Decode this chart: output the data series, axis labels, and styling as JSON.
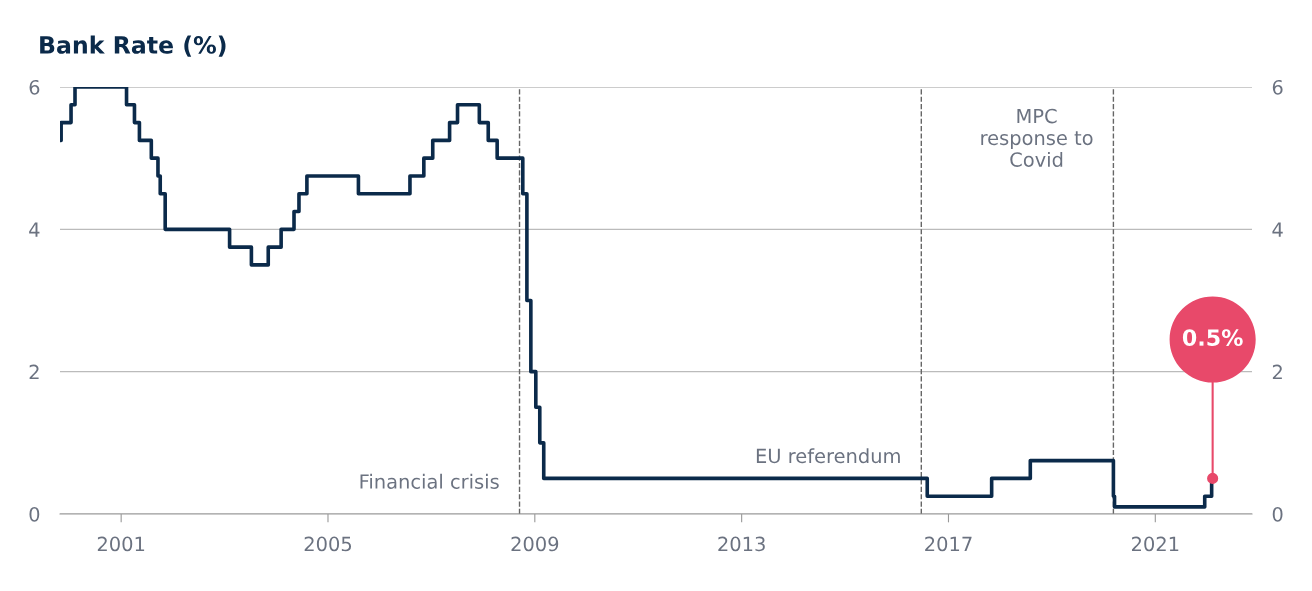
{
  "chart_data": {
    "type": "step",
    "title": "Bank Rate (%)",
    "x": [
      "1999-10-27",
      "1999-11-04",
      "2000-01-13",
      "2000-02-10",
      "2001-02-08",
      "2001-04-05",
      "2001-05-10",
      "2001-08-02",
      "2001-09-18",
      "2001-10-04",
      "2001-11-08",
      "2003-02-06",
      "2003-07-10",
      "2003-11-06",
      "2004-02-05",
      "2004-05-06",
      "2004-06-10",
      "2004-08-05",
      "2005-08-04",
      "2006-08-03",
      "2006-11-09",
      "2007-01-11",
      "2007-05-10",
      "2007-07-05",
      "2007-12-06",
      "2008-02-07",
      "2008-04-10",
      "2008-10-08",
      "2008-11-06",
      "2008-12-04",
      "2009-01-08",
      "2009-02-05",
      "2009-03-05",
      "2016-08-04",
      "2017-11-02",
      "2018-08-02",
      "2020-03-11",
      "2020-03-19",
      "2021-12-16",
      "2022-02-03"
    ],
    "series": [
      {
        "color": "#0b2a4a",
        "values": [
          5.25,
          5.5,
          5.75,
          6.0,
          5.75,
          5.5,
          5.25,
          5.0,
          4.75,
          4.5,
          4.0,
          3.75,
          3.5,
          3.75,
          4.0,
          4.25,
          4.5,
          4.75,
          4.5,
          4.75,
          5.0,
          5.25,
          5.5,
          5.75,
          5.5,
          5.25,
          5.0,
          4.5,
          3.0,
          2.0,
          1.5,
          1.0,
          0.5,
          0.25,
          0.5,
          0.75,
          0.25,
          0.1,
          0.25,
          0.5
        ]
      }
    ],
    "xlim": [
      "1999-10-27",
      "2022-11-15"
    ],
    "xticks": [
      {
        "value": "2001-01-01",
        "label": "2001"
      },
      {
        "value": "2005-01-01",
        "label": "2005"
      },
      {
        "value": "2009-01-01",
        "label": "2009"
      },
      {
        "value": "2013-01-01",
        "label": "2013"
      },
      {
        "value": "2017-01-01",
        "label": "2017"
      },
      {
        "value": "2021-01-01",
        "label": "2021"
      }
    ],
    "ylim": [
      0,
      6
    ],
    "yticks": [
      0,
      2,
      4,
      6
    ],
    "y2lim": [
      0,
      6
    ],
    "y2ticks": [
      0,
      2,
      4,
      6
    ],
    "grid": "y",
    "legend": false,
    "marker": "none",
    "line_style": "solid",
    "ref_lines": [
      {
        "axis": "x",
        "value": "2008-09-15",
        "label": "Financial crisis",
        "color": "#666666",
        "line_style": "dashed"
      },
      {
        "axis": "x",
        "value": "2016-06-23",
        "label": "EU referendum",
        "color": "#666666",
        "line_style": "dashed"
      },
      {
        "axis": "x",
        "value": "2020-03-11",
        "label": "MPC\nresponse to\nCovid",
        "color": "#666666",
        "line_style": "dashed"
      }
    ],
    "annotations": [
      "0.5%"
    ]
  }
}
